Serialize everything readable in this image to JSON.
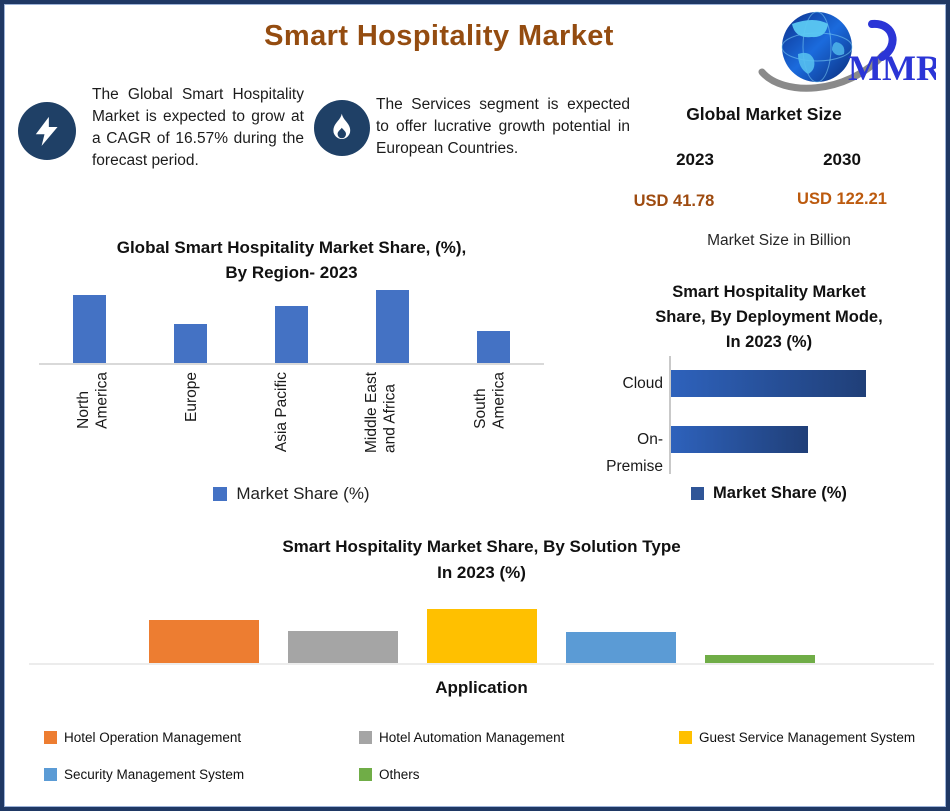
{
  "header": {
    "title": "Smart Hospitality Market",
    "title_color": "#944C10",
    "logo_text": "MMR"
  },
  "highlights": [
    {
      "icon": "lightning-icon",
      "text": "The Global Smart Hospitality Market is expected to grow at a CAGR of 16.57% during the forecast period."
    },
    {
      "icon": "flame-icon",
      "text": "The Services segment is expected to offer lucrative growth potential in European Countries."
    }
  ],
  "market_size": {
    "heading": "Global Market Size",
    "year_left": "2023",
    "year_right": "2030",
    "value_left": "USD 41.78",
    "value_right": "USD 122.21",
    "note": "Market Size in Billion",
    "value_left_color": "#9E4B10",
    "value_right_color": "#BC5A0E"
  },
  "palette": {
    "frame_border": "#1F3864",
    "icon_circle": "#1F4066",
    "region_bar": "#4472C4",
    "deploy_gradient_start": "#2E62BC",
    "deploy_gradient_end": "#203F78"
  },
  "chart_data": [
    {
      "id": "region",
      "type": "bar",
      "title": "Global Smart Hospitality Market Share, (%),\nBy Region- 2023",
      "categories": [
        "North\nAmerica",
        "Europe",
        "Asia Pacific",
        "Middle East\nand Africa",
        "South\nAmerica"
      ],
      "values": [
        30,
        17,
        25,
        32,
        14
      ],
      "ylim": [
        0,
        32
      ],
      "bar_color": "#4472C4",
      "grid": false,
      "legend": [
        "Market Share (%)"
      ],
      "legend_color": "#4472C4",
      "legend_position": "bottom"
    },
    {
      "id": "deployment",
      "type": "bar-horizontal",
      "title": "Smart Hospitality Market\nShare, By Deployment Mode,\nIn 2023 (%)",
      "categories": [
        "Cloud",
        "On-Premise"
      ],
      "values": [
        60,
        42
      ],
      "xlim": [
        0,
        80
      ],
      "bar_gradient": [
        "#2E62BC",
        "#203F78"
      ],
      "grid": false,
      "legend": [
        "Market Share (%)"
      ],
      "legend_color": "#2F5597",
      "legend_position": "bottom"
    },
    {
      "id": "solution",
      "type": "bar",
      "title": "Smart Hospitality Market  Share, By Solution Type\nIn 2023 (%)",
      "xlabel": "Application",
      "categories": [
        "Hotel Operation Management",
        "Hotel Automation Management",
        "Guest Service Management System",
        "Security Management System",
        "Others"
      ],
      "values": [
        28,
        21,
        35,
        20,
        5
      ],
      "ylim": [
        0,
        35
      ],
      "colors": [
        "#ED7D31",
        "#A5A5A5",
        "#FFC000",
        "#5B9BD5",
        "#70AD47"
      ],
      "grid": false,
      "legend_position": "bottom"
    }
  ]
}
